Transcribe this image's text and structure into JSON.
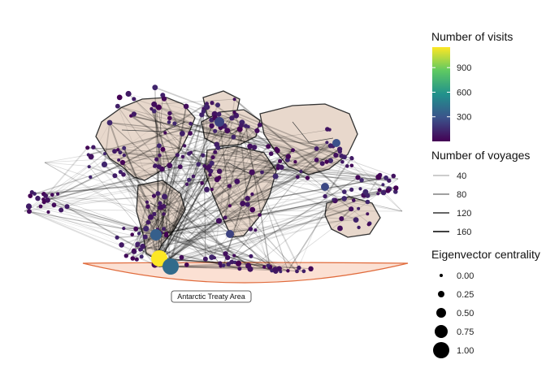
{
  "chart_data": {
    "type": "network-map",
    "annotation": "Antarctic Treaty Area",
    "legend_visits": {
      "title": "Number of visits",
      "ticks": [
        300,
        600,
        900
      ],
      "tick_labels": [
        "300",
        "600",
        "900"
      ],
      "range": [
        0,
        1150
      ],
      "colors": [
        "#440154",
        "#3b528b",
        "#21918c",
        "#5ec962",
        "#fde725"
      ]
    },
    "legend_voyages": {
      "title": "Number of voyages",
      "values": [
        40,
        80,
        120,
        160
      ],
      "labels": [
        "40",
        "80",
        "120",
        "160"
      ]
    },
    "legend_centrality": {
      "title": "Eigenvector centrality",
      "values": [
        0.0,
        0.25,
        0.5,
        0.75,
        1.0
      ],
      "labels": [
        "0.00",
        "0.25",
        "0.50",
        "0.75",
        "1.00"
      ]
    },
    "colors": {
      "land_fill": "#e8d8cc",
      "land_stroke": "#333333",
      "edge": "#000000",
      "node_low": "#440154",
      "node_high": "#fde725",
      "treaty_area": "#f4a582",
      "treaty_stroke": "#e06a3b"
    }
  }
}
